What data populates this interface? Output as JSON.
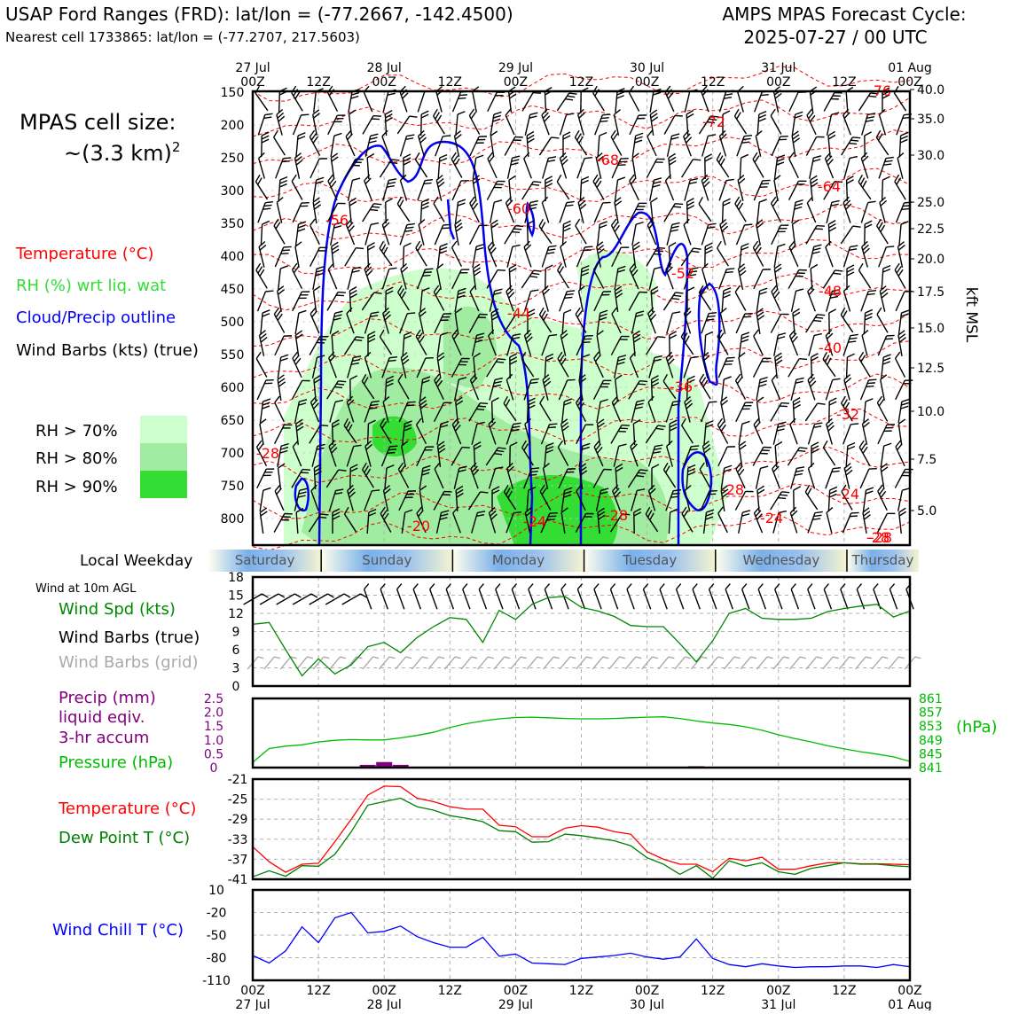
{
  "header": {
    "title": "USAP Ford Ranges (FRD): lat/lon = (-77.2667, -142.4500)",
    "subtitle": "Nearest cell 1733865: lat/lon = (-77.2707, 217.5603)",
    "cycle_label": "AMPS MPAS Forecast Cycle:",
    "cycle_value": "2025-07-27 / 00 UTC"
  },
  "cell_size": {
    "line1": "MPAS cell size:",
    "line2": "~(3.3 km)",
    "sup": "2"
  },
  "legend_top": {
    "temperature": "Temperature (°C)",
    "rh": "RH (%) wrt liq. wat",
    "cloud": "Cloud/Precip outline",
    "wind": "Wind Barbs (kts) (true)",
    "rh70": "RH > 70%",
    "rh80": "RH > 80%",
    "rh90": "RH > 90%"
  },
  "colors": {
    "temp": "#ff0000",
    "rh70": "#ccffcc",
    "rh80": "#a0eca0",
    "rh90": "#33dd33",
    "cloud": "#0000ee",
    "wind_spd": "#008800",
    "pressure": "#00bb00",
    "precip": "#800080",
    "dewpoint": "#008000",
    "windchill": "#0000ff",
    "grid": "#b0b0b0"
  },
  "time_axis": {
    "top_dates": [
      "27 Jul",
      "28 Jul",
      "29 Jul",
      "30 Jul",
      "31 Jul",
      "01 Aug"
    ],
    "ticks": [
      "00Z",
      "12Z",
      "00Z",
      "12Z",
      "00Z",
      "12Z",
      "00Z",
      "12Z",
      "00Z",
      "12Z",
      "00Z"
    ],
    "bottom_dates": [
      "27 Jul",
      "28 Jul",
      "29 Jul",
      "30 Jul",
      "31 Jul",
      "01 Aug"
    ]
  },
  "pressure_levels": [
    "150",
    "200",
    "250",
    "300",
    "350",
    "400",
    "450",
    "500",
    "550",
    "600",
    "650",
    "700",
    "750",
    "800"
  ],
  "kft_levels": [
    "40.0",
    "35.0",
    "30.0",
    "25.0",
    "22.5",
    "20.0",
    "17.5",
    "15.0",
    "12.5",
    "10.0",
    "7.5",
    "5.0"
  ],
  "kft_label": "kft MSL",
  "temp_contour_labels": [
    "-76",
    "-72",
    "-68",
    "-64",
    "-60",
    "-56",
    "-52",
    "-48",
    "-44",
    "-40",
    "-36",
    "-32",
    "-28",
    "-28",
    "-28",
    "-24",
    "-24",
    "-24",
    "-20",
    "-28",
    "-28"
  ],
  "weekday_bar": {
    "label": "Local Weekday",
    "days": [
      "Saturday",
      "Sunday",
      "Monday",
      "Tuesday",
      "Wednesday",
      "Thursday"
    ]
  },
  "panel_wind": {
    "note": "Wind at 10m AGL",
    "label_speed": "Wind Spd (kts)",
    "label_barbs_true": "Wind Barbs (true)",
    "label_barbs_grid": "Wind Barbs (grid)",
    "yticks": [
      "18",
      "15",
      "12",
      "9",
      "6",
      "3",
      "0"
    ]
  },
  "panel_precip": {
    "label_precip1": "Precip (mm)",
    "label_precip2": "liquid eqiv.",
    "label_precip3": "3-hr accum",
    "label_pressure": "Pressure (hPa)",
    "left_ticks": [
      "2.5",
      "2.0",
      "1.5",
      "1.0",
      "0.5",
      "0"
    ],
    "right_ticks": [
      "861",
      "857",
      "853",
      "849",
      "845",
      "841"
    ],
    "right_unit": "(hPa)"
  },
  "panel_temp": {
    "label_temp": "Temperature (°C)",
    "label_dew": "Dew Point T (°C)",
    "yticks": [
      "-21",
      "-25",
      "-29",
      "-33",
      "-37",
      "-41"
    ]
  },
  "panel_chill": {
    "label": "Wind Chill T (°C)",
    "yticks": [
      "10",
      "-20",
      "-50",
      "-80",
      "-110"
    ]
  },
  "chart_data": {
    "type": "line",
    "x_hours": [
      0,
      3,
      6,
      9,
      12,
      15,
      18,
      21,
      24,
      27,
      30,
      33,
      36,
      39,
      42,
      45,
      48,
      51,
      54,
      57,
      60,
      63,
      66,
      69,
      72,
      75,
      78,
      81,
      84,
      87,
      90,
      93,
      96,
      99,
      102,
      105,
      108,
      111,
      114,
      117,
      120
    ],
    "series": [
      {
        "name": "Wind Spd (kts)",
        "ylim": [
          0,
          18
        ],
        "values": [
          10.2,
          10.5,
          6.0,
          1.7,
          4.5,
          2.0,
          3.5,
          6.5,
          7.2,
          5.5,
          8.0,
          9.8,
          11.3,
          11.0,
          7.2,
          12.5,
          11.0,
          13.5,
          14.6,
          14.8,
          13.0,
          12.4,
          11.5,
          10.0,
          9.8,
          9.8,
          7.0,
          4.0,
          7.5,
          12.0,
          12.8,
          11.2,
          11.0,
          11.0,
          11.2,
          12.3,
          12.8,
          13.2,
          13.5,
          11.4,
          12.4
        ]
      },
      {
        "name": "Pressure (hPa)",
        "ylim": [
          841,
          861
        ],
        "values": [
          842.5,
          846.5,
          847.2,
          847.6,
          848.4,
          848.9,
          849.1,
          849.0,
          849.0,
          849.6,
          850.3,
          851.2,
          852.6,
          853.7,
          854.5,
          855.1,
          855.5,
          855.6,
          855.4,
          855.2,
          855.1,
          855.1,
          855.2,
          855.4,
          855.6,
          855.7,
          855.2,
          854.5,
          853.9,
          853.5,
          852.8,
          851.8,
          850.5,
          849.4,
          848.4,
          847.3,
          846.4,
          845.6,
          844.9,
          844.1,
          842.8
        ]
      },
      {
        "name": "Precip (mm)",
        "ylim": [
          0,
          2.5
        ],
        "values": [
          0,
          0,
          0,
          0,
          0,
          0,
          0,
          0.1,
          0.2,
          0.1,
          0,
          0,
          0,
          0,
          0,
          0,
          0,
          0,
          0,
          0,
          0,
          0,
          0,
          0,
          0,
          0,
          0,
          0.05,
          0,
          0,
          0,
          0,
          0,
          0,
          0,
          0,
          0,
          0,
          0,
          0,
          0
        ]
      },
      {
        "name": "Temperature (°C)",
        "ylim": [
          -41,
          -21
        ],
        "values": [
          -34.5,
          -37.5,
          -39.6,
          -38.0,
          -37.8,
          -33.5,
          -29.0,
          -24.2,
          -22.4,
          -22.5,
          -24.8,
          -25.5,
          -26.5,
          -27.0,
          -27.0,
          -30.2,
          -30.5,
          -32.5,
          -32.5,
          -30.8,
          -30.3,
          -30.6,
          -31.5,
          -32.0,
          -35.5,
          -37.0,
          -38.0,
          -38.0,
          -39.5,
          -36.8,
          -37.3,
          -36.6,
          -39.0,
          -39.0,
          -38.3,
          -37.7,
          -37.7,
          -37.9,
          -37.9,
          -38.0,
          -38.1
        ]
      },
      {
        "name": "Dew Point T (°C)",
        "ylim": [
          -41,
          -21
        ],
        "values": [
          -40.5,
          -39.3,
          -40.4,
          -38.3,
          -38.4,
          -36.0,
          -31.5,
          -26.2,
          -25.5,
          -24.8,
          -26.5,
          -27.2,
          -28.3,
          -28.8,
          -29.5,
          -31.3,
          -31.5,
          -33.6,
          -33.5,
          -32.0,
          -32.3,
          -32.8,
          -33.3,
          -34.3,
          -36.7,
          -38.0,
          -40.0,
          -38.3,
          -40.8,
          -37.3,
          -38.4,
          -37.7,
          -39.5,
          -40.0,
          -38.8,
          -38.3,
          -37.7,
          -38.0,
          -38.0,
          -38.3,
          -38.5
        ]
      },
      {
        "name": "Wind Chill T (°C)",
        "ylim": [
          -110,
          10
        ],
        "values": [
          -77.0,
          -87.0,
          -71.0,
          -39.0,
          -60.0,
          -27.0,
          -20.0,
          -47.0,
          -45.0,
          -38.0,
          -52.0,
          -60.0,
          -66.0,
          -66.0,
          -53.0,
          -78.0,
          -75.0,
          -87.0,
          -88.0,
          -89.0,
          -81.0,
          -79.0,
          -77.0,
          -74.0,
          -79.0,
          -82.0,
          -79.0,
          -55.0,
          -81.0,
          -89.0,
          -92.0,
          -88.0,
          -91.0,
          -93.0,
          -92.0,
          -92.0,
          -91.0,
          -91.0,
          -93.0,
          -89.0,
          -92.0
        ]
      }
    ]
  }
}
